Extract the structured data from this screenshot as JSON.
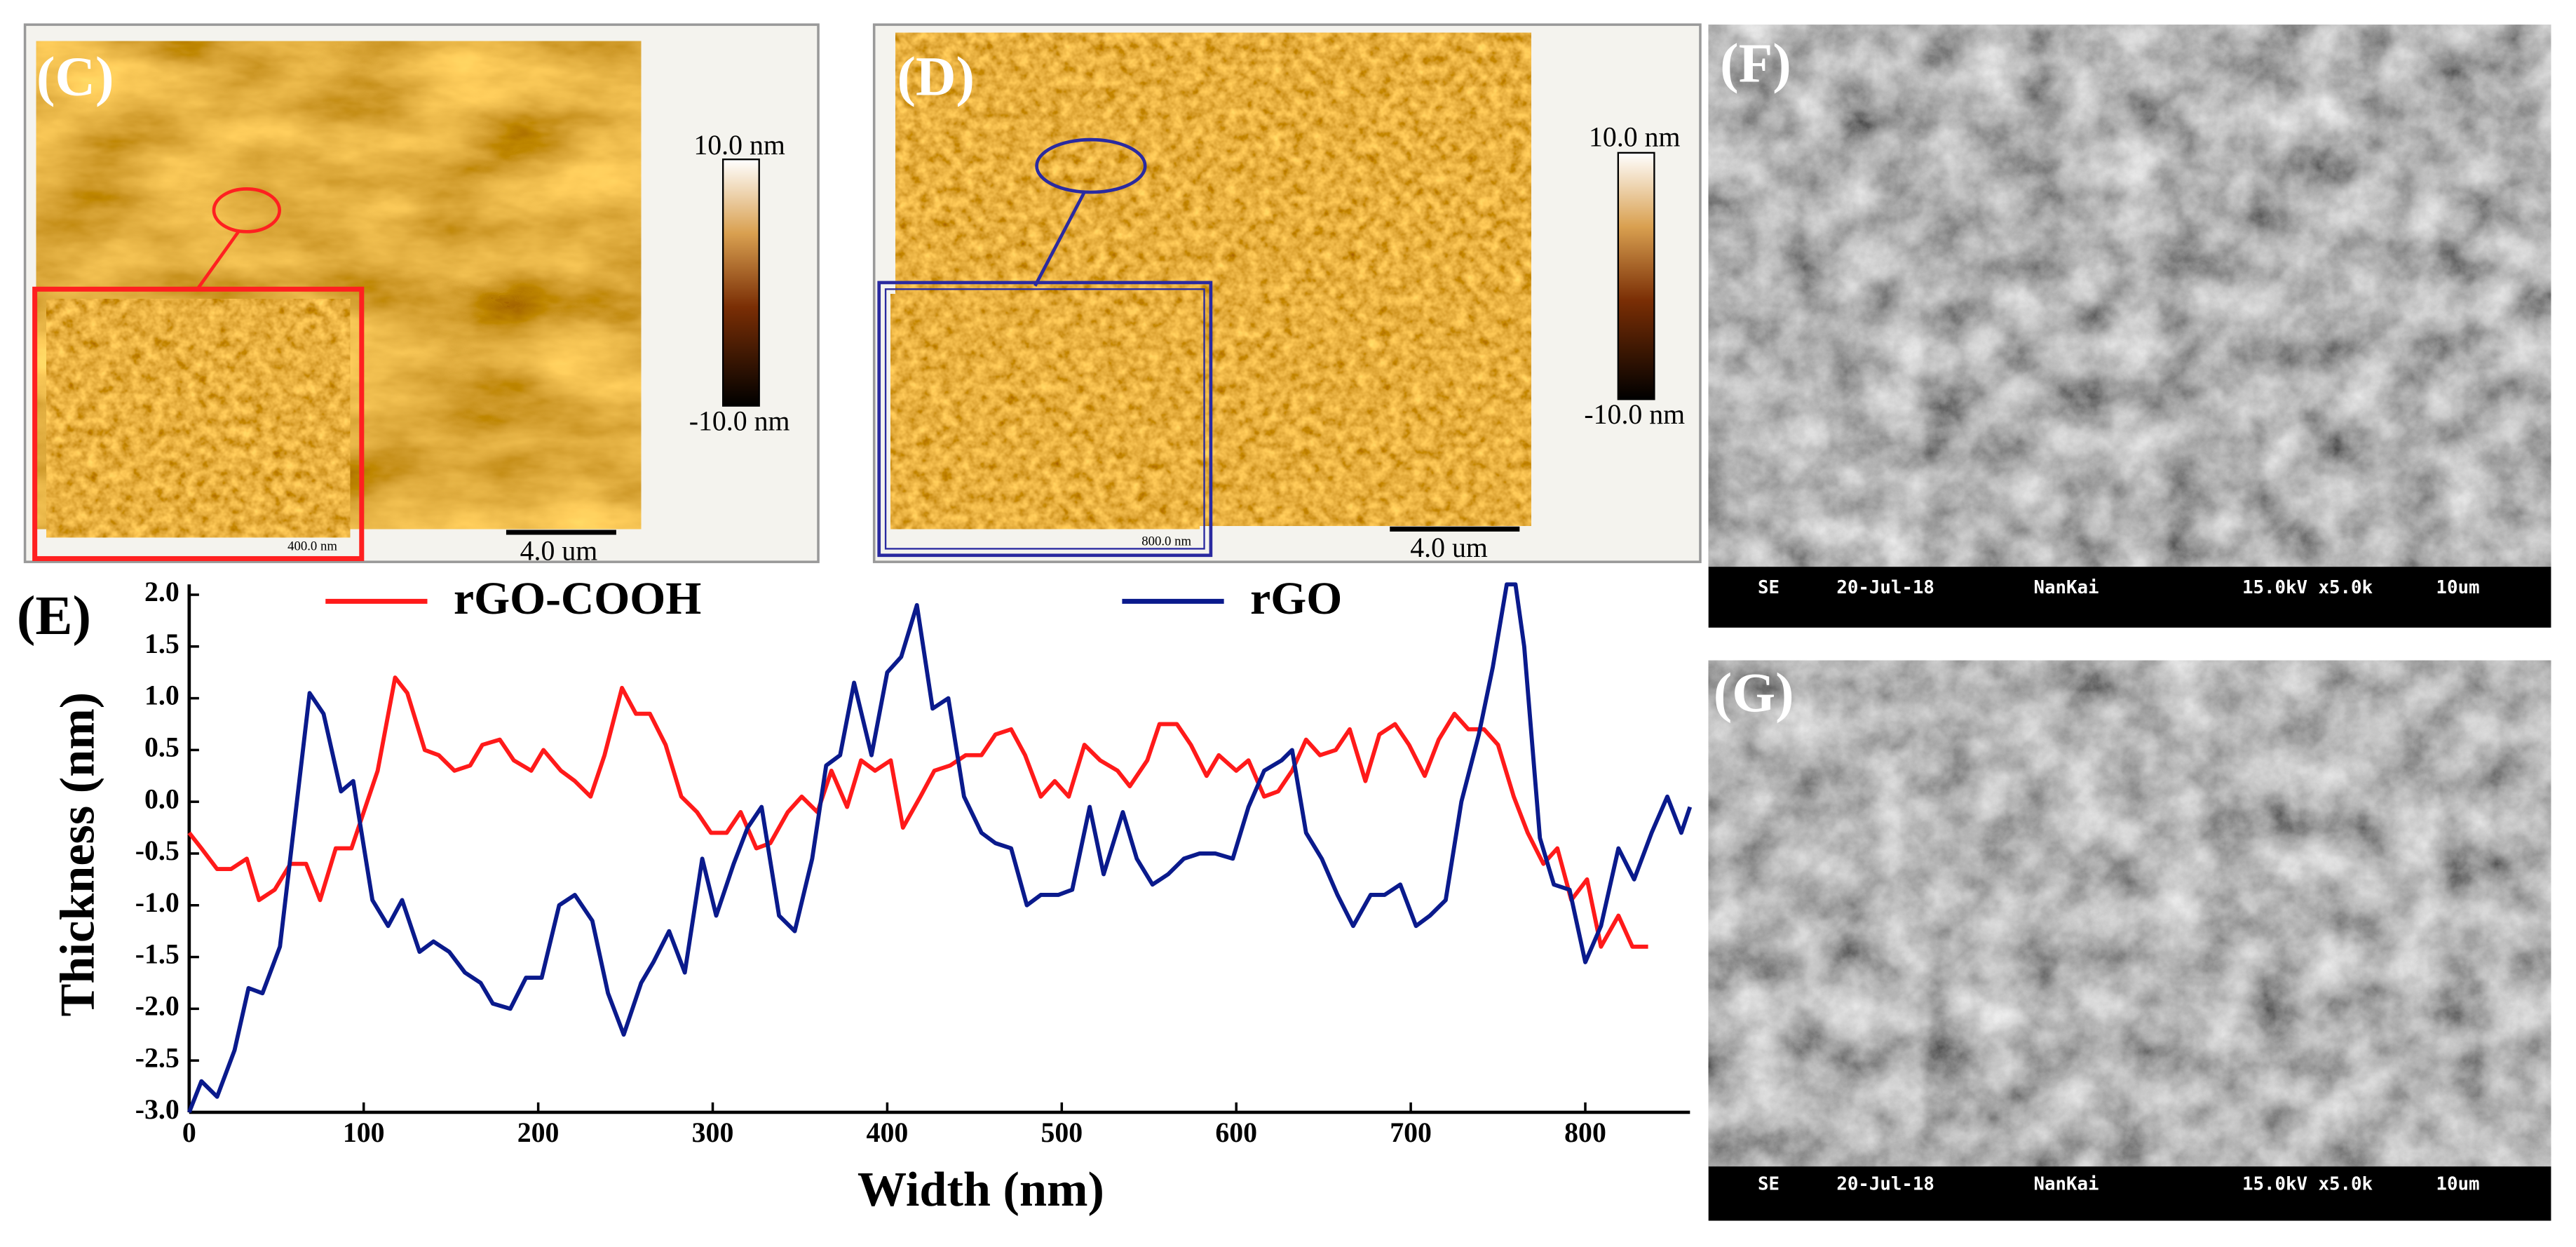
{
  "panels": {
    "C": {
      "label": "(C)",
      "colorbar_max": "10.0 nm",
      "colorbar_min": "-10.0 nm",
      "scale_bar": "4.0 um",
      "inset_scale": "400.0 nm"
    },
    "D": {
      "label": "(D)",
      "colorbar_max": "10.0 nm",
      "colorbar_min": "-10.0 nm",
      "scale_bar": "4.0 um",
      "inset_scale": "800.0 nm"
    },
    "F": {
      "label": "(F)",
      "info": [
        "SE",
        "20-Jul-18",
        "NanKai",
        "15.0kV x5.0k",
        "10um"
      ]
    },
    "G": {
      "label": "(G)",
      "info": [
        "SE",
        "20-Jul-18",
        "NanKai",
        "15.0kV x5.0k",
        "10um"
      ]
    }
  },
  "chart_data": {
    "type": "line",
    "panel_label": "(E)",
    "xlabel": "Width (nm)",
    "ylabel": "Thickness (nm)",
    "xlim": [
      0,
      860
    ],
    "ylim": [
      -3,
      2.1
    ],
    "xticks": [
      0,
      100,
      200,
      300,
      400,
      500,
      600,
      700,
      800
    ],
    "yticks": [
      {
        "value": -3,
        "label": "-3.0"
      },
      -2.5,
      {
        "value": -2,
        "label": "-2.0"
      },
      -1.5,
      {
        "value": -1,
        "label": "-1.0"
      },
      -0.5,
      {
        "value": 0,
        "label": "0.0"
      },
      0.5,
      {
        "value": 1,
        "label": "1.0"
      },
      1.5,
      {
        "value": 2,
        "label": "2.0"
      }
    ],
    "series": [
      {
        "name": "rGO-COOH",
        "color": "#ff1a1a",
        "x": [
          0,
          7,
          16,
          24,
          33,
          40,
          49,
          58,
          67,
          75,
          84,
          93,
          108,
          118,
          125,
          135,
          143,
          152,
          161,
          168,
          178,
          186,
          196,
          203,
          213,
          221,
          230,
          238,
          248,
          256,
          264,
          273,
          282,
          291,
          299,
          308,
          316,
          325,
          333,
          343,
          351,
          360,
          368,
          377,
          385,
          393,
          402,
          409,
          419,
          427,
          436,
          445,
          454,
          462,
          471,
          479,
          488,
          496,
          504,
          513,
          522,
          532,
          539,
          549,
          556,
          566,
          574,
          583,
          590,
          600,
          607,
          616,
          624,
          632,
          640,
          648,
          657,
          665,
          674,
          682,
          691,
          699,
          708,
          716,
          725,
          733,
          742,
          750,
          759,
          767,
          776,
          784,
          792,
          801,
          809,
          819,
          827,
          836
        ],
        "values": [
          -0.3,
          -0.45,
          -0.65,
          -0.65,
          -0.55,
          -0.95,
          -0.85,
          -0.6,
          -0.6,
          -0.95,
          -0.45,
          -0.45,
          0.3,
          1.2,
          1.05,
          0.5,
          0.45,
          0.3,
          0.35,
          0.55,
          0.6,
          0.4,
          0.3,
          0.5,
          0.3,
          0.2,
          0.05,
          0.45,
          1.1,
          0.85,
          0.85,
          0.55,
          0.05,
          -0.1,
          -0.3,
          -0.3,
          -0.1,
          -0.45,
          -0.4,
          -0.1,
          0.05,
          -0.1,
          0.3,
          -0.05,
          0.4,
          0.3,
          0.4,
          -0.25,
          0.05,
          0.3,
          0.35,
          0.45,
          0.45,
          0.65,
          0.7,
          0.45,
          0.05,
          0.2,
          0.05,
          0.55,
          0.4,
          0.3,
          0.15,
          0.4,
          0.75,
          0.75,
          0.55,
          0.25,
          0.45,
          0.3,
          0.4,
          0.05,
          0.1,
          0.3,
          0.6,
          0.45,
          0.5,
          0.7,
          0.2,
          0.65,
          0.75,
          0.55,
          0.25,
          0.6,
          0.85,
          0.7,
          0.7,
          0.55,
          0.05,
          -0.3,
          -0.6,
          -0.45,
          -0.95,
          -0.75,
          -1.4,
          -1.1,
          -1.4,
          -1.4
        ]
      },
      {
        "name": "rGO",
        "color": "#0a1a8c",
        "x": [
          0,
          7,
          16,
          26,
          34,
          42,
          52,
          69,
          77,
          87,
          94,
          105,
          114,
          122,
          132,
          140,
          149,
          158,
          167,
          174,
          184,
          193,
          202,
          212,
          221,
          231,
          240,
          249,
          259,
          266,
          275,
          284,
          294,
          302,
          312,
          320,
          328,
          338,
          347,
          357,
          365,
          373,
          381,
          391,
          400,
          408,
          417,
          426,
          435,
          444,
          454,
          462,
          471,
          480,
          488,
          498,
          506,
          516,
          524,
          535,
          543,
          552,
          561,
          570,
          579,
          588,
          598,
          607,
          616,
          626,
          632,
          640,
          649,
          658,
          667,
          677,
          685,
          694,
          703,
          711,
          720,
          729,
          739,
          747,
          755,
          760,
          765,
          774,
          782,
          791,
          800,
          809,
          819,
          828,
          838,
          847,
          855,
          860
        ],
        "values": [
          -3.0,
          -2.7,
          -2.85,
          -2.4,
          -1.8,
          -1.85,
          -1.4,
          1.05,
          0.85,
          0.1,
          0.2,
          -0.95,
          -1.2,
          -0.95,
          -1.45,
          -1.35,
          -1.45,
          -1.65,
          -1.75,
          -1.95,
          -2.0,
          -1.7,
          -1.7,
          -1.0,
          -0.9,
          -1.15,
          -1.85,
          -2.25,
          -1.75,
          -1.55,
          -1.25,
          -1.65,
          -0.55,
          -1.1,
          -0.6,
          -0.25,
          -0.05,
          -1.1,
          -1.25,
          -0.55,
          0.35,
          0.45,
          1.15,
          0.45,
          1.25,
          1.4,
          1.9,
          0.9,
          1.0,
          0.05,
          -0.3,
          -0.4,
          -0.45,
          -1.0,
          -0.9,
          -0.9,
          -0.85,
          -0.05,
          -0.7,
          -0.1,
          -0.55,
          -0.8,
          -0.7,
          -0.55,
          -0.5,
          -0.5,
          -0.55,
          -0.05,
          0.3,
          0.4,
          0.5,
          -0.3,
          -0.55,
          -0.9,
          -1.2,
          -0.9,
          -0.9,
          -0.8,
          -1.2,
          -1.1,
          -0.95,
          0.0,
          0.65,
          1.3,
          2.1,
          2.1,
          1.5,
          -0.35,
          -0.8,
          -0.85,
          -1.55,
          -1.2,
          -0.45,
          -0.75,
          -0.3,
          0.05,
          -0.3,
          -0.05
        ]
      }
    ]
  }
}
